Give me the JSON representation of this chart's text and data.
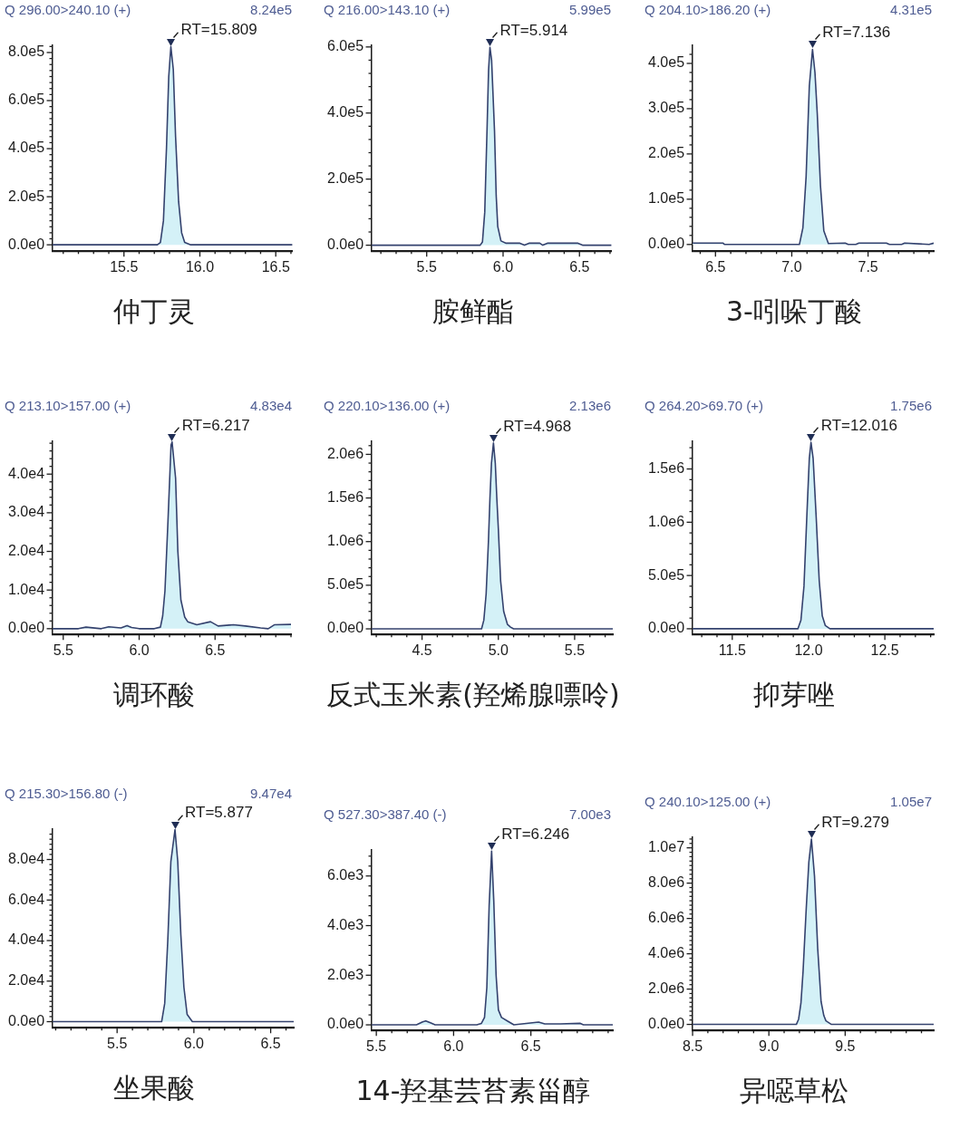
{
  "chart_data": [
    {
      "type": "area",
      "title": "仲丁灵",
      "subtitle": "Q 296.00>240.10 (+)",
      "annotations": [
        "8.24e5",
        {
          "text": "RT=15.809",
          "x": 15.809,
          "y": 824000
        }
      ],
      "color": "#34426e",
      "x": [
        15.03,
        15.72,
        15.74,
        15.76,
        15.78,
        15.795,
        15.809,
        15.825,
        15.84,
        15.86,
        15.88,
        15.9,
        15.94,
        16.61
      ],
      "values": [
        0,
        0,
        10000,
        100000,
        400000,
        700000,
        824000,
        730000,
        450000,
        180000,
        50000,
        10000,
        0,
        0
      ],
      "xlim": [
        15.03,
        16.61
      ],
      "ylim": [
        -25000,
        830000
      ],
      "xticks": [
        {
          "value": 15.1,
          "label": null
        },
        {
          "value": 15.2,
          "label": null
        },
        {
          "value": 15.3,
          "label": null
        },
        {
          "value": 15.4,
          "label": null
        },
        15.5,
        {
          "value": 15.6,
          "label": null
        },
        {
          "value": 15.7,
          "label": null
        },
        {
          "value": 15.8,
          "label": null
        },
        {
          "value": 15.9,
          "label": null
        },
        {
          "value": 16,
          "label": "16.0"
        },
        {
          "value": 16.1,
          "label": null
        },
        {
          "value": 16.2,
          "label": null
        },
        {
          "value": 16.3,
          "label": null
        },
        {
          "value": 16.4,
          "label": null
        },
        16.5,
        {
          "value": 16.6,
          "label": null
        }
      ],
      "yticks": [
        {
          "value": 0,
          "label": "0.0e0"
        },
        {
          "value": 25000,
          "label": null
        },
        {
          "value": 50000,
          "label": null
        },
        {
          "value": 75000,
          "label": null
        },
        {
          "value": 100000,
          "label": null
        },
        {
          "value": 125000,
          "label": null
        },
        {
          "value": 150000,
          "label": null
        },
        {
          "value": 175000,
          "label": null
        },
        {
          "value": 200000,
          "label": "2.0e5"
        },
        {
          "value": 225000,
          "label": null
        },
        {
          "value": 250000,
          "label": null
        },
        {
          "value": 275000,
          "label": null
        },
        {
          "value": 300000,
          "label": null
        },
        {
          "value": 325000,
          "label": null
        },
        {
          "value": 350000,
          "label": null
        },
        {
          "value": 375000,
          "label": null
        },
        {
          "value": 400000,
          "label": "4.0e5"
        },
        {
          "value": 425000,
          "label": null
        },
        {
          "value": 450000,
          "label": null
        },
        {
          "value": 475000,
          "label": null
        },
        {
          "value": 500000,
          "label": null
        },
        {
          "value": 525000,
          "label": null
        },
        {
          "value": 550000,
          "label": null
        },
        {
          "value": 575000,
          "label": null
        },
        {
          "value": 600000,
          "label": "6.0e5"
        },
        {
          "value": 625000,
          "label": null
        },
        {
          "value": 650000,
          "label": null
        },
        {
          "value": 675000,
          "label": null
        },
        {
          "value": 700000,
          "label": null
        },
        {
          "value": 725000,
          "label": null
        },
        {
          "value": 750000,
          "label": null
        },
        {
          "value": 775000,
          "label": null
        },
        {
          "value": 800000,
          "label": "8.0e5"
        },
        {
          "value": 825000,
          "label": null
        }
      ]
    },
    {
      "type": "area",
      "title": "胺鲜酯",
      "subtitle": "Q 216.00>143.10 (+)",
      "annotations": [
        "5.99e5",
        {
          "text": "RT=5.914",
          "x": 5.914,
          "y": 599000
        }
      ],
      "color": "#34426e",
      "x": [
        5.14,
        5.85,
        5.865,
        5.88,
        5.895,
        5.905,
        5.914,
        5.925,
        5.944,
        5.955,
        5.965,
        5.986,
        6.02,
        6.11,
        6.14,
        6.17,
        6.24,
        6.26,
        6.29,
        6.49,
        6.52,
        6.71
      ],
      "values": [
        0,
        0,
        10000,
        100000,
        350000,
        530000,
        599000,
        560000,
        345000,
        150000,
        57000,
        13000,
        6000,
        6000,
        0,
        6000,
        6000,
        0,
        6000,
        6000,
        0,
        0
      ],
      "xlim": [
        5.14,
        6.71
      ],
      "ylim": [
        -17000,
        605000
      ],
      "xticks": [
        {
          "value": 5.2,
          "label": null
        },
        {
          "value": 5.3,
          "label": null
        },
        {
          "value": 5.4,
          "label": null
        },
        5.5,
        {
          "value": 5.6,
          "label": null
        },
        {
          "value": 5.7,
          "label": null
        },
        {
          "value": 5.8,
          "label": null
        },
        {
          "value": 5.9,
          "label": null
        },
        {
          "value": 6,
          "label": "6.0"
        },
        {
          "value": 6.1,
          "label": null
        },
        {
          "value": 6.2,
          "label": null
        },
        {
          "value": 6.3,
          "label": null
        },
        {
          "value": 6.4,
          "label": null
        },
        6.5,
        {
          "value": 6.6,
          "label": null
        },
        {
          "value": 6.7,
          "label": null
        }
      ],
      "yticks": [
        {
          "value": 0,
          "label": "0.0e0"
        },
        {
          "value": 40000,
          "label": null
        },
        {
          "value": 80000,
          "label": null
        },
        {
          "value": 120000,
          "label": null
        },
        {
          "value": 160000,
          "label": null
        },
        {
          "value": 200000,
          "label": "2.0e5"
        },
        {
          "value": 240000,
          "label": null
        },
        {
          "value": 280000,
          "label": null
        },
        {
          "value": 320000,
          "label": null
        },
        {
          "value": 360000,
          "label": null
        },
        {
          "value": 400000,
          "label": "4.0e5"
        },
        {
          "value": 440000,
          "label": null
        },
        {
          "value": 480000,
          "label": null
        },
        {
          "value": 520000,
          "label": null
        },
        {
          "value": 560000,
          "label": null
        },
        {
          "value": 600000,
          "label": "6.0e5"
        }
      ]
    },
    {
      "type": "area",
      "title": "3-吲哚丁酸",
      "subtitle": "Q 204.10>186.20 (+)",
      "annotations": [
        "4.31e5",
        {
          "text": "RT=7.136",
          "x": 7.136,
          "y": 431000
        }
      ],
      "color": "#34426e",
      "x": [
        6.35,
        6.55,
        6.56,
        7.05,
        7.073,
        7.094,
        7.115,
        7.136,
        7.152,
        7.167,
        7.188,
        7.21,
        7.24,
        7.35,
        7.37,
        7.42,
        7.44,
        7.62,
        7.64,
        7.72,
        7.74,
        7.9,
        7.93
      ],
      "values": [
        3000,
        3000,
        0,
        0,
        37000,
        150000,
        350000,
        431000,
        380000,
        290000,
        130000,
        30000,
        2000,
        3000,
        0,
        0,
        3000,
        3000,
        0,
        0,
        3000,
        0,
        3000
      ],
      "xlim": [
        6.35,
        7.93
      ],
      "ylim": [
        -14000,
        440000
      ],
      "xticks": [
        {
          "value": 6.4,
          "label": null
        },
        6.5,
        {
          "value": 6.6,
          "label": null
        },
        {
          "value": 6.7,
          "label": null
        },
        {
          "value": 6.8,
          "label": null
        },
        {
          "value": 6.9,
          "label": null
        },
        {
          "value": 7,
          "label": "7.0"
        },
        {
          "value": 7.1,
          "label": null
        },
        {
          "value": 7.2,
          "label": null
        },
        {
          "value": 7.3,
          "label": null
        },
        {
          "value": 7.4,
          "label": null
        },
        7.5,
        {
          "value": 7.6,
          "label": null
        },
        {
          "value": 7.7,
          "label": null
        },
        {
          "value": 7.8,
          "label": null
        },
        {
          "value": 7.9,
          "label": null
        }
      ],
      "yticks": [
        {
          "value": 0,
          "label": "0.0e0"
        },
        {
          "value": 20000,
          "label": null
        },
        {
          "value": 40000,
          "label": null
        },
        {
          "value": 60000,
          "label": null
        },
        {
          "value": 80000,
          "label": null
        },
        {
          "value": 100000,
          "label": "1.0e5"
        },
        {
          "value": 120000,
          "label": null
        },
        {
          "value": 140000,
          "label": null
        },
        {
          "value": 160000,
          "label": null
        },
        {
          "value": 180000,
          "label": null
        },
        {
          "value": 200000,
          "label": "2.0e5"
        },
        {
          "value": 220000,
          "label": null
        },
        {
          "value": 240000,
          "label": null
        },
        {
          "value": 260000,
          "label": null
        },
        {
          "value": 280000,
          "label": null
        },
        {
          "value": 300000,
          "label": "3.0e5"
        },
        {
          "value": 320000,
          "label": null
        },
        {
          "value": 340000,
          "label": null
        },
        {
          "value": 360000,
          "label": null
        },
        {
          "value": 380000,
          "label": null
        },
        {
          "value": 400000,
          "label": "4.0e5"
        },
        {
          "value": 420000,
          "label": null
        }
      ]
    },
    {
      "type": "area",
      "title": "调环酸",
      "subtitle": "Q 213.10>157.00 (+)",
      "annotations": [
        "4.83e4",
        {
          "text": "RT=6.217",
          "x": 6.217,
          "y": 48300
        }
      ],
      "color": "#34426e",
      "x": [
        5.43,
        5.6,
        5.65,
        5.75,
        5.8,
        5.88,
        5.92,
        5.95,
        6.0,
        6.1,
        6.14,
        6.155,
        6.17,
        6.19,
        6.21,
        6.217,
        6.24,
        6.255,
        6.275,
        6.3,
        6.32,
        6.38,
        6.47,
        6.52,
        6.62,
        6.7,
        6.8,
        6.85,
        6.89,
        7.0
      ],
      "values": [
        0,
        0,
        400,
        0,
        500,
        200,
        800,
        300,
        0,
        0,
        400,
        3300,
        9800,
        28000,
        47500,
        48300,
        39000,
        20000,
        7400,
        3000,
        1800,
        1000,
        1800,
        700,
        1000,
        700,
        200,
        0,
        1000,
        1100
      ],
      "xlim": [
        5.43,
        7.0
      ],
      "ylim": [
        -1400,
        48500
      ],
      "xticks": [
        5.5,
        {
          "value": 5.6,
          "label": null
        },
        {
          "value": 5.7,
          "label": null
        },
        {
          "value": 5.8,
          "label": null
        },
        {
          "value": 5.9,
          "label": null
        },
        {
          "value": 6,
          "label": "6.0"
        },
        {
          "value": 6.1,
          "label": null
        },
        {
          "value": 6.2,
          "label": null
        },
        {
          "value": 6.3,
          "label": null
        },
        {
          "value": 6.4,
          "label": null
        },
        6.5,
        {
          "value": 6.6,
          "label": null
        },
        {
          "value": 6.7,
          "label": null
        },
        {
          "value": 6.8,
          "label": null
        },
        {
          "value": 6.9,
          "label": null
        },
        {
          "value": 7,
          "label": null
        }
      ],
      "yticks": [
        {
          "value": 0,
          "label": "0.0e0"
        },
        {
          "value": 2000,
          "label": null
        },
        {
          "value": 4000,
          "label": null
        },
        {
          "value": 6000,
          "label": null
        },
        {
          "value": 8000,
          "label": null
        },
        {
          "value": 10000,
          "label": "1.0e4"
        },
        {
          "value": 12000,
          "label": null
        },
        {
          "value": 14000,
          "label": null
        },
        {
          "value": 16000,
          "label": null
        },
        {
          "value": 18000,
          "label": null
        },
        {
          "value": 20000,
          "label": "2.0e4"
        },
        {
          "value": 22000,
          "label": null
        },
        {
          "value": 24000,
          "label": null
        },
        {
          "value": 26000,
          "label": null
        },
        {
          "value": 28000,
          "label": null
        },
        {
          "value": 30000,
          "label": "3.0e4"
        },
        {
          "value": 32000,
          "label": null
        },
        {
          "value": 34000,
          "label": null
        },
        {
          "value": 36000,
          "label": null
        },
        {
          "value": 38000,
          "label": null
        },
        {
          "value": 40000,
          "label": "4.0e4"
        },
        {
          "value": 42000,
          "label": null
        },
        {
          "value": 44000,
          "label": null
        },
        {
          "value": 46000,
          "label": null
        },
        {
          "value": 48000,
          "label": null
        }
      ]
    },
    {
      "type": "area",
      "title": "反式玉米素(羟烯腺嘌呤)",
      "subtitle": "Q 220.10>136.00 (+)",
      "annotations": [
        "2.13e6",
        {
          "text": "RT=4.968",
          "x": 4.968,
          "y": 2130000
        }
      ],
      "color": "#34426e",
      "x": [
        4.17,
        4.89,
        4.905,
        4.92,
        4.935,
        4.945,
        4.955,
        4.968,
        4.98,
        4.99,
        5.0,
        5.015,
        5.035,
        5.06,
        5.08,
        5.1,
        5.75
      ],
      "values": [
        0,
        0,
        100000,
        400000,
        1000000,
        1500000,
        1900000,
        2130000,
        1900000,
        1500000,
        1150000,
        550000,
        200000,
        50000,
        20000,
        0,
        0
      ],
      "xlim": [
        4.17,
        5.75
      ],
      "ylim": [
        -60000,
        2150000
      ],
      "xticks": [
        {
          "value": 4.2,
          "label": null
        },
        {
          "value": 4.3,
          "label": null
        },
        {
          "value": 4.4,
          "label": null
        },
        4.5,
        {
          "value": 4.6,
          "label": null
        },
        {
          "value": 4.7,
          "label": null
        },
        {
          "value": 4.8,
          "label": null
        },
        {
          "value": 4.9,
          "label": null
        },
        {
          "value": 5,
          "label": "5.0"
        },
        {
          "value": 5.1,
          "label": null
        },
        {
          "value": 5.2,
          "label": null
        },
        {
          "value": 5.3,
          "label": null
        },
        {
          "value": 5.4,
          "label": null
        },
        5.5,
        {
          "value": 5.6,
          "label": null
        },
        {
          "value": 5.7,
          "label": null
        }
      ],
      "yticks": [
        {
          "value": 0,
          "label": "0.0e0"
        },
        {
          "value": 100000,
          "label": null
        },
        {
          "value": 200000,
          "label": null
        },
        {
          "value": 300000,
          "label": null
        },
        {
          "value": 400000,
          "label": null
        },
        {
          "value": 500000,
          "label": "5.0e5"
        },
        {
          "value": 600000,
          "label": null
        },
        {
          "value": 700000,
          "label": null
        },
        {
          "value": 800000,
          "label": null
        },
        {
          "value": 900000,
          "label": null
        },
        {
          "value": 1000000,
          "label": "1.0e6"
        },
        {
          "value": 1100000,
          "label": null
        },
        {
          "value": 1200000,
          "label": null
        },
        {
          "value": 1300000,
          "label": null
        },
        {
          "value": 1400000,
          "label": null
        },
        {
          "value": 1500000,
          "label": "1.5e6"
        },
        {
          "value": 1600000,
          "label": null
        },
        {
          "value": 1700000,
          "label": null
        },
        {
          "value": 1800000,
          "label": null
        },
        {
          "value": 1900000,
          "label": null
        },
        {
          "value": 2000000,
          "label": "2.0e6"
        },
        {
          "value": 2100000,
          "label": null
        }
      ]
    },
    {
      "type": "area",
      "title": "抑芽唑",
      "subtitle": "Q 264.20>69.70 (+)",
      "annotations": [
        "1.75e6",
        {
          "text": "RT=12.016",
          "x": 12.016,
          "y": 1750000
        }
      ],
      "color": "#34426e",
      "x": [
        11.24,
        11.93,
        11.95,
        11.97,
        11.99,
        12.005,
        12.016,
        12.03,
        12.05,
        12.07,
        12.09,
        12.11,
        12.14,
        12.82
      ],
      "values": [
        0,
        0,
        80000,
        400000,
        1100000,
        1600000,
        1750000,
        1600000,
        1050000,
        450000,
        120000,
        30000,
        0,
        0
      ],
      "xlim": [
        11.24,
        12.82
      ],
      "ylim": [
        -50000,
        1760000
      ],
      "xticks": [
        {
          "value": 11.3,
          "label": null
        },
        {
          "value": 11.4,
          "label": null
        },
        11.5,
        {
          "value": 11.6,
          "label": null
        },
        {
          "value": 11.7,
          "label": null
        },
        {
          "value": 11.8,
          "label": null
        },
        {
          "value": 11.9,
          "label": null
        },
        {
          "value": 12,
          "label": "12.0"
        },
        {
          "value": 12.1,
          "label": null
        },
        {
          "value": 12.2,
          "label": null
        },
        {
          "value": 12.3,
          "label": null
        },
        {
          "value": 12.4,
          "label": null
        },
        12.5,
        {
          "value": 12.6,
          "label": null
        },
        {
          "value": 12.7,
          "label": null
        },
        {
          "value": 12.8,
          "label": null
        }
      ],
      "yticks": [
        {
          "value": 0,
          "label": "0.0e0"
        },
        {
          "value": 100000,
          "label": null
        },
        {
          "value": 200000,
          "label": null
        },
        {
          "value": 300000,
          "label": null
        },
        {
          "value": 400000,
          "label": null
        },
        {
          "value": 500000,
          "label": "5.0e5"
        },
        {
          "value": 600000,
          "label": null
        },
        {
          "value": 700000,
          "label": null
        },
        {
          "value": 800000,
          "label": null
        },
        {
          "value": 900000,
          "label": null
        },
        {
          "value": 1000000,
          "label": "1.0e6"
        },
        {
          "value": 1100000,
          "label": null
        },
        {
          "value": 1200000,
          "label": null
        },
        {
          "value": 1300000,
          "label": null
        },
        {
          "value": 1400000,
          "label": null
        },
        {
          "value": 1500000,
          "label": "1.5e6"
        },
        {
          "value": 1600000,
          "label": null
        },
        {
          "value": 1700000,
          "label": null
        }
      ]
    },
    {
      "type": "area",
      "title": "坐果酸",
      "subtitle": "Q 215.30>156.80 (-)",
      "annotations": [
        "9.47e4",
        {
          "text": "RT=5.877",
          "x": 5.877,
          "y": 94700
        }
      ],
      "color": "#34426e",
      "x": [
        5.08,
        5.79,
        5.81,
        5.83,
        5.85,
        5.877,
        5.895,
        5.915,
        5.935,
        5.956,
        5.99,
        6.65
      ],
      "values": [
        0,
        0,
        9000,
        40000,
        79000,
        94700,
        79000,
        43000,
        17000,
        3600,
        0,
        0
      ],
      "xlim": [
        5.08,
        6.65
      ],
      "ylim": [
        -2800,
        95000
      ],
      "xticks": [
        {
          "value": 5.1,
          "label": null
        },
        {
          "value": 5.2,
          "label": null
        },
        {
          "value": 5.3,
          "label": null
        },
        {
          "value": 5.4,
          "label": null
        },
        5.5,
        {
          "value": 5.6,
          "label": null
        },
        {
          "value": 5.7,
          "label": null
        },
        {
          "value": 5.8,
          "label": null
        },
        {
          "value": 5.9,
          "label": null
        },
        {
          "value": 6,
          "label": "6.0"
        },
        {
          "value": 6.1,
          "label": null
        },
        {
          "value": 6.2,
          "label": null
        },
        {
          "value": 6.3,
          "label": null
        },
        {
          "value": 6.4,
          "label": null
        },
        6.5,
        {
          "value": 6.6,
          "label": null
        }
      ],
      "yticks": [
        {
          "value": 0,
          "label": "0.0e0"
        },
        {
          "value": 2500,
          "label": null
        },
        {
          "value": 5000,
          "label": null
        },
        {
          "value": 7500,
          "label": null
        },
        {
          "value": 10000,
          "label": null
        },
        {
          "value": 12500,
          "label": null
        },
        {
          "value": 15000,
          "label": null
        },
        {
          "value": 17500,
          "label": null
        },
        {
          "value": 20000,
          "label": "2.0e4"
        },
        {
          "value": 22500,
          "label": null
        },
        {
          "value": 25000,
          "label": null
        },
        {
          "value": 27500,
          "label": null
        },
        {
          "value": 30000,
          "label": null
        },
        {
          "value": 32500,
          "label": null
        },
        {
          "value": 35000,
          "label": null
        },
        {
          "value": 37500,
          "label": null
        },
        {
          "value": 40000,
          "label": "4.0e4"
        },
        {
          "value": 42500,
          "label": null
        },
        {
          "value": 45000,
          "label": null
        },
        {
          "value": 47500,
          "label": null
        },
        {
          "value": 50000,
          "label": null
        },
        {
          "value": 52500,
          "label": null
        },
        {
          "value": 55000,
          "label": null
        },
        {
          "value": 57500,
          "label": null
        },
        {
          "value": 60000,
          "label": "6.0e4"
        },
        {
          "value": 62500,
          "label": null
        },
        {
          "value": 65000,
          "label": null
        },
        {
          "value": 67500,
          "label": null
        },
        {
          "value": 70000,
          "label": null
        },
        {
          "value": 72500,
          "label": null
        },
        {
          "value": 75000,
          "label": null
        },
        {
          "value": 77500,
          "label": null
        },
        {
          "value": 80000,
          "label": "8.0e4"
        },
        {
          "value": 82500,
          "label": null
        },
        {
          "value": 85000,
          "label": null
        },
        {
          "value": 87500,
          "label": null
        },
        {
          "value": 90000,
          "label": null
        },
        {
          "value": 92500,
          "label": null
        }
      ]
    },
    {
      "type": "area",
      "title": "14-羟基芸苔素甾醇",
      "subtitle": "Q 527.30>387.40 (-)",
      "annotations": [
        "7.00e3",
        {
          "text": "RT=6.246",
          "x": 6.246,
          "y": 7000
        }
      ],
      "color": "#34426e",
      "x": [
        5.47,
        5.76,
        5.8,
        5.82,
        5.85,
        5.88,
        6.15,
        6.18,
        6.2,
        6.215,
        6.23,
        6.246,
        6.26,
        6.275,
        6.29,
        6.31,
        6.35,
        6.39,
        6.55,
        6.59,
        6.69,
        6.82,
        6.84,
        7.03
      ],
      "values": [
        0,
        0,
        120,
        160,
        80,
        0,
        0,
        60,
        300,
        1500,
        4800,
        7000,
        5000,
        2000,
        600,
        300,
        150,
        0,
        110,
        40,
        40,
        60,
        0,
        0
      ],
      "xlim": [
        5.47,
        7.03
      ],
      "ylim": [
        -210,
        7050
      ],
      "xticks": [
        5.5,
        {
          "value": 5.6,
          "label": null
        },
        {
          "value": 5.7,
          "label": null
        },
        {
          "value": 5.8,
          "label": null
        },
        {
          "value": 5.9,
          "label": null
        },
        {
          "value": 6,
          "label": "6.0"
        },
        {
          "value": 6.1,
          "label": null
        },
        {
          "value": 6.2,
          "label": null
        },
        {
          "value": 6.3,
          "label": null
        },
        {
          "value": 6.4,
          "label": null
        },
        6.5,
        {
          "value": 6.6,
          "label": null
        },
        {
          "value": 6.7,
          "label": null
        },
        {
          "value": 6.8,
          "label": null
        },
        {
          "value": 6.9,
          "label": null
        },
        {
          "value": 7,
          "label": null
        }
      ],
      "yticks": [
        {
          "value": 0,
          "label": "0.0e0"
        },
        {
          "value": 400,
          "label": null
        },
        {
          "value": 800,
          "label": null
        },
        {
          "value": 1200,
          "label": null
        },
        {
          "value": 1600,
          "label": null
        },
        {
          "value": 2000,
          "label": "2.0e3"
        },
        {
          "value": 2400,
          "label": null
        },
        {
          "value": 2800,
          "label": null
        },
        {
          "value": 3200,
          "label": null
        },
        {
          "value": 3600,
          "label": null
        },
        {
          "value": 4000,
          "label": "4.0e3"
        },
        {
          "value": 4400,
          "label": null
        },
        {
          "value": 4800,
          "label": null
        },
        {
          "value": 5200,
          "label": null
        },
        {
          "value": 5600,
          "label": null
        },
        {
          "value": 6000,
          "label": "6.0e3"
        },
        {
          "value": 6400,
          "label": null
        },
        {
          "value": 6800,
          "label": null
        }
      ]
    },
    {
      "type": "area",
      "title": "异噁草松",
      "subtitle": "Q 240.10>125.00 (+)",
      "annotations": [
        "1.05e7",
        {
          "text": "RT=9.279",
          "x": 9.279,
          "y": 10500000
        }
      ],
      "color": "#34426e",
      "x": [
        8.5,
        9.18,
        9.195,
        9.21,
        9.224,
        9.245,
        9.262,
        9.279,
        9.299,
        9.32,
        9.342,
        9.36,
        9.374,
        9.41,
        10.08
      ],
      "values": [
        0,
        0,
        300000,
        1200000,
        3000000,
        6600000,
        9200000,
        10500000,
        8400000,
        4300000,
        1300000,
        500000,
        200000,
        0,
        0
      ],
      "xlim": [
        8.5,
        10.08
      ],
      "ylim": [
        -320000,
        10600000
      ],
      "xticks": [
        8.5,
        {
          "value": 8.6,
          "label": null
        },
        {
          "value": 8.7,
          "label": null
        },
        {
          "value": 8.8,
          "label": null
        },
        {
          "value": 8.9,
          "label": null
        },
        {
          "value": 9,
          "label": "9.0"
        },
        {
          "value": 9.1,
          "label": null
        },
        {
          "value": 9.2,
          "label": null
        },
        {
          "value": 9.3,
          "label": null
        },
        {
          "value": 9.4,
          "label": null
        },
        9.5,
        {
          "value": 9.6,
          "label": null
        },
        {
          "value": 9.7,
          "label": null
        },
        {
          "value": 9.8,
          "label": null
        },
        {
          "value": 9.9,
          "label": null
        },
        {
          "value": 10,
          "label": null
        }
      ],
      "yticks": [
        {
          "value": 0,
          "label": "0.0e0"
        },
        {
          "value": 250000,
          "label": null
        },
        {
          "value": 500000,
          "label": null
        },
        {
          "value": 750000,
          "label": null
        },
        {
          "value": 1000000,
          "label": null
        },
        {
          "value": 1250000,
          "label": null
        },
        {
          "value": 1500000,
          "label": null
        },
        {
          "value": 1750000,
          "label": null
        },
        {
          "value": 2000000,
          "label": "2.0e6"
        },
        {
          "value": 2250000,
          "label": null
        },
        {
          "value": 2500000,
          "label": null
        },
        {
          "value": 2750000,
          "label": null
        },
        {
          "value": 3000000,
          "label": null
        },
        {
          "value": 3250000,
          "label": null
        },
        {
          "value": 3500000,
          "label": null
        },
        {
          "value": 3750000,
          "label": null
        },
        {
          "value": 4000000,
          "label": "4.0e6"
        },
        {
          "value": 4250000,
          "label": null
        },
        {
          "value": 4500000,
          "label": null
        },
        {
          "value": 4750000,
          "label": null
        },
        {
          "value": 5000000,
          "label": null
        },
        {
          "value": 5250000,
          "label": null
        },
        {
          "value": 5500000,
          "label": null
        },
        {
          "value": 5750000,
          "label": null
        },
        {
          "value": 6000000,
          "label": "6.0e6"
        },
        {
          "value": 6250000,
          "label": null
        },
        {
          "value": 6500000,
          "label": null
        },
        {
          "value": 6750000,
          "label": null
        },
        {
          "value": 7000000,
          "label": null
        },
        {
          "value": 7250000,
          "label": null
        },
        {
          "value": 7500000,
          "label": null
        },
        {
          "value": 7750000,
          "label": null
        },
        {
          "value": 8000000,
          "label": "8.0e6"
        },
        {
          "value": 8250000,
          "label": null
        },
        {
          "value": 8500000,
          "label": null
        },
        {
          "value": 8750000,
          "label": null
        },
        {
          "value": 9000000,
          "label": null
        },
        {
          "value": 9250000,
          "label": null
        },
        {
          "value": 9500000,
          "label": null
        },
        {
          "value": 9750000,
          "label": null
        },
        {
          "value": 10000000,
          "label": "1.0e7"
        },
        {
          "value": 10250000,
          "label": null
        },
        {
          "value": 10500000,
          "label": null
        }
      ]
    }
  ]
}
